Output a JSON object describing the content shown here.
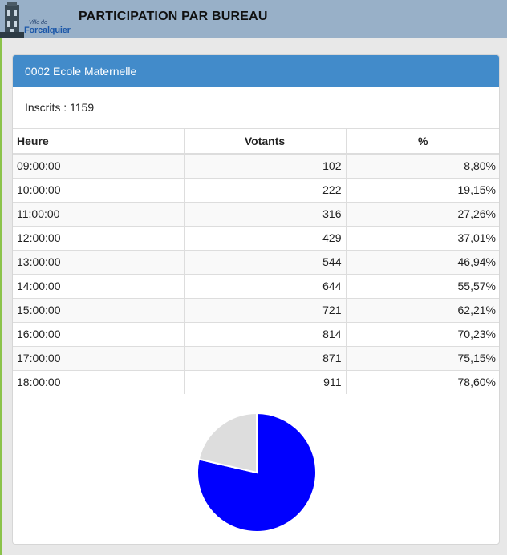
{
  "header": {
    "title": "PARTICIPATION PAR BUREAU",
    "logo_small": "Ville de",
    "logo_big": "Forcalquier"
  },
  "panel": {
    "bureau": "0002 Ecole Maternelle",
    "inscrits": "Inscrits : 1159"
  },
  "table": {
    "headers": [
      "Heure",
      "Votants",
      "%"
    ],
    "rows": [
      [
        "09:00:00",
        "102",
        "8,80%"
      ],
      [
        "10:00:00",
        "222",
        "19,15%"
      ],
      [
        "11:00:00",
        "316",
        "27,26%"
      ],
      [
        "12:00:00",
        "429",
        "37,01%"
      ],
      [
        "13:00:00",
        "544",
        "46,94%"
      ],
      [
        "14:00:00",
        "644",
        "55,57%"
      ],
      [
        "15:00:00",
        "721",
        "62,21%"
      ],
      [
        "16:00:00",
        "814",
        "70,23%"
      ],
      [
        "17:00:00",
        "871",
        "75,15%"
      ],
      [
        "18:00:00",
        "911",
        "78,60%"
      ]
    ]
  },
  "chart_data": {
    "type": "pie",
    "slices": [
      {
        "value": 78.6,
        "color": "#0000ff"
      },
      {
        "value": 21.4,
        "color": "#dddddd"
      }
    ]
  },
  "colors": {
    "heading": "#428bca",
    "header_bar": "#98b0c8"
  }
}
